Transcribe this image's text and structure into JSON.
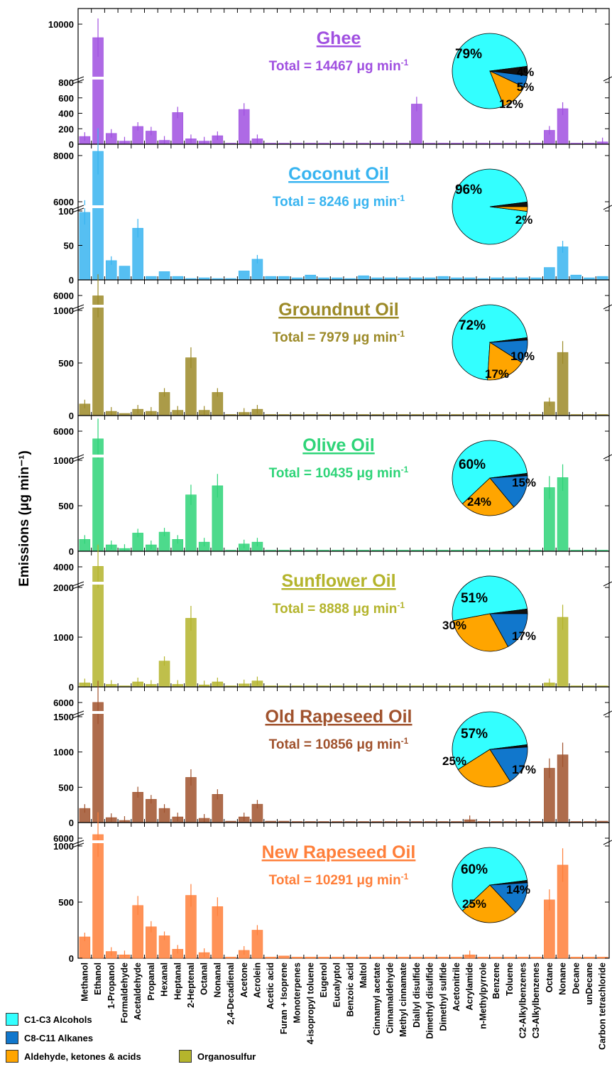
{
  "y_axis_label": "Emissions (μg min⁻¹)",
  "legend": [
    {
      "label": "C1-C3 Alcohols",
      "color": "#33ffff"
    },
    {
      "label": "C8-C11 Alkanes",
      "color": "#1177cc"
    },
    {
      "label": "Aldehyde, ketones & acids",
      "color": "#ffa500"
    },
    {
      "label": "Organosulfur",
      "color": "#b5b52c"
    }
  ],
  "chart_data": {
    "type": "bar",
    "categories": [
      "Methanol",
      "Ethanol",
      "1-Propanol",
      "Formaldehyde",
      "Acetaldehyde",
      "Propanal",
      "Hexanal",
      "Heptanal",
      "2-Heptenal",
      "Octanal",
      "Nonanal",
      "2,4-Decadienal",
      "Acetone",
      "Acrolein",
      "Acetic acid",
      "Furan + Isoprene",
      "Monoterpenes",
      "4-isopropyl toluene",
      "Eugenol",
      "Eucalyptol",
      "Benzoic acid",
      "Maltol",
      "Cinnamyl acetate",
      "Cinnamaldehyde",
      "Methyl cinnamate",
      "Diallyl disulfide",
      "Dimethyl disulfide",
      "Dimethyl sulfide",
      "Acetonitrile",
      "Acrylamide",
      "n-Methylpyrrole",
      "Benzene",
      "Toluene",
      "C2-Alkylbenzenes",
      "C3-Alkylbenzenes",
      "Octane",
      "Nonane",
      "Decane",
      "unDecane",
      "Carbon tetrachloride"
    ],
    "panels": [
      {
        "name": "Ghee",
        "total": "Total = 14467 μg min",
        "total_sup": "-1",
        "color": "#a050e0",
        "upper_ticks": [
          "10000"
        ],
        "lower_ticks": [
          "0",
          "200",
          "400",
          "600",
          "800"
        ],
        "values": [
          100,
          10800,
          140,
          40,
          230,
          170,
          50,
          410,
          70,
          40,
          110,
          5,
          450,
          70,
          5,
          10,
          5,
          5,
          5,
          5,
          5,
          5,
          5,
          5,
          5,
          520,
          5,
          5,
          5,
          5,
          5,
          10,
          5,
          5,
          5,
          180,
          460,
          5,
          5,
          30
        ],
        "pie": {
          "slices": [
            79,
            4,
            5,
            12
          ],
          "labels": [
            "79%",
            "4%",
            "5%",
            "12%"
          ]
        }
      },
      {
        "name": "Coconut Oil",
        "total": "Total = 8246 μg min",
        "total_sup": "-1",
        "color": "#38b4f0",
        "upper_ticks": [
          "6000",
          "8000"
        ],
        "lower_ticks": [
          "0",
          "50",
          "100"
        ],
        "values": [
          98,
          7800,
          28,
          20,
          75,
          5,
          12,
          5,
          2,
          3,
          2,
          2,
          13,
          30,
          5,
          5,
          3,
          7,
          3,
          3,
          2,
          6,
          3,
          3,
          3,
          3,
          3,
          5,
          3,
          3,
          2,
          3,
          3,
          3,
          3,
          18,
          48,
          7,
          3,
          5
        ],
        "pie": {
          "slices": [
            96,
            2,
            2
          ],
          "labels": [
            "96%",
            "2%"
          ]
        }
      },
      {
        "name": "Groundnut Oil",
        "total": "Total = 7979 μg min",
        "total_sup": "-1",
        "color": "#9c8a28",
        "upper_ticks": [
          "6000"
        ],
        "lower_ticks": [
          "0",
          "500",
          "1000"
        ],
        "values": [
          110,
          5900,
          40,
          20,
          60,
          40,
          220,
          50,
          550,
          50,
          220,
          10,
          30,
          60,
          5,
          5,
          5,
          5,
          5,
          5,
          5,
          5,
          5,
          5,
          5,
          5,
          5,
          5,
          5,
          5,
          5,
          5,
          5,
          5,
          5,
          130,
          600,
          5,
          5,
          5
        ],
        "pie": {
          "slices": [
            72,
            1,
            10,
            17
          ],
          "labels": [
            "72%",
            "10%",
            "17%"
          ]
        }
      },
      {
        "name": "Olive Oil",
        "total": "Total = 10435 μg min",
        "total_sup": "-1",
        "color": "#2ed478",
        "upper_ticks": [
          "6000"
        ],
        "lower_ticks": [
          "0",
          "500",
          "1000"
        ],
        "values": [
          130,
          6000,
          70,
          30,
          200,
          70,
          210,
          130,
          620,
          100,
          720,
          10,
          80,
          100,
          5,
          5,
          5,
          5,
          5,
          5,
          5,
          5,
          5,
          5,
          5,
          5,
          5,
          5,
          5,
          5,
          5,
          5,
          5,
          5,
          5,
          700,
          810,
          5,
          5,
          5
        ],
        "pie": {
          "slices": [
            60,
            1,
            15,
            24
          ],
          "labels": [
            "60%",
            "15%",
            "24%"
          ]
        }
      },
      {
        "name": "Sunflower Oil",
        "total": "Total = 8888 μg min",
        "total_sup": "-1",
        "color": "#b4b42c",
        "upper_ticks": [
          "4000"
        ],
        "lower_ticks": [
          "0",
          "1000",
          "2000"
        ],
        "values": [
          80,
          4300,
          50,
          20,
          100,
          50,
          520,
          50,
          1380,
          40,
          100,
          10,
          60,
          120,
          5,
          5,
          5,
          5,
          5,
          5,
          5,
          5,
          5,
          5,
          5,
          5,
          5,
          5,
          5,
          5,
          5,
          5,
          5,
          5,
          5,
          80,
          1400,
          5,
          5,
          5
        ],
        "pie": {
          "slices": [
            51,
            2,
            17,
            30
          ],
          "labels": [
            "51%",
            "17%",
            "30%"
          ]
        }
      },
      {
        "name": "Old Rapeseed Oil",
        "total": "Total = 10856 μg min",
        "total_sup": "-1",
        "color": "#a0522d",
        "upper_ticks": [
          "6000"
        ],
        "lower_ticks": [
          "0",
          "500",
          "1000",
          "1500"
        ],
        "values": [
          200,
          5900,
          70,
          30,
          430,
          330,
          200,
          80,
          640,
          60,
          400,
          20,
          80,
          260,
          20,
          20,
          10,
          10,
          10,
          10,
          10,
          10,
          10,
          10,
          10,
          10,
          10,
          10,
          10,
          40,
          10,
          10,
          10,
          10,
          10,
          770,
          960,
          10,
          10,
          20
        ],
        "pie": {
          "slices": [
            57,
            1,
            17,
            25
          ],
          "labels": [
            "57%",
            "17%",
            "25%"
          ]
        }
      },
      {
        "name": "New Rapeseed Oil",
        "total": "Total = 10291 μg min",
        "total_sup": "-1",
        "color": "#ff7f3a",
        "upper_ticks": [
          "6000"
        ],
        "lower_ticks": [
          "0",
          "500",
          "1000"
        ],
        "values": [
          190,
          5800,
          60,
          30,
          470,
          280,
          200,
          80,
          560,
          50,
          460,
          10,
          70,
          250,
          10,
          20,
          10,
          10,
          10,
          10,
          10,
          10,
          10,
          10,
          10,
          10,
          10,
          10,
          10,
          30,
          10,
          10,
          10,
          10,
          10,
          520,
          830,
          10,
          10,
          10
        ],
        "pie": {
          "slices": [
            60,
            1,
            14,
            25
          ],
          "labels": [
            "60%",
            "14%",
            "25%"
          ]
        }
      }
    ]
  }
}
